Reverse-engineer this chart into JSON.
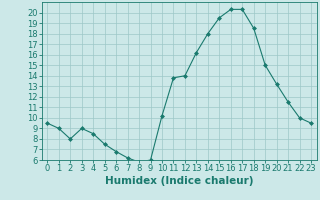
{
  "x": [
    0,
    1,
    2,
    3,
    4,
    5,
    6,
    7,
    8,
    9,
    10,
    11,
    12,
    13,
    14,
    15,
    16,
    17,
    18,
    19,
    20,
    21,
    22,
    23
  ],
  "y": [
    9.5,
    9.0,
    8.0,
    9.0,
    8.5,
    7.5,
    6.8,
    6.2,
    5.8,
    6.0,
    10.2,
    13.8,
    14.0,
    16.2,
    18.0,
    19.5,
    20.3,
    20.3,
    18.5,
    15.0,
    13.2,
    11.5,
    10.0,
    9.5
  ],
  "line_color": "#1a7a6e",
  "marker": "D",
  "marker_size": 2,
  "bg_color": "#cce8e8",
  "grid_color": "#9dc8c8",
  "xlabel": "Humidex (Indice chaleur)",
  "xlabel_fontsize": 7.5,
  "tick_fontsize": 6,
  "ylim": [
    6,
    21
  ],
  "xlim": [
    -0.5,
    23.5
  ],
  "yticks": [
    6,
    7,
    8,
    9,
    10,
    11,
    12,
    13,
    14,
    15,
    16,
    17,
    18,
    19,
    20
  ],
  "xticks": [
    0,
    1,
    2,
    3,
    4,
    5,
    6,
    7,
    8,
    9,
    10,
    11,
    12,
    13,
    14,
    15,
    16,
    17,
    18,
    19,
    20,
    21,
    22,
    23
  ]
}
